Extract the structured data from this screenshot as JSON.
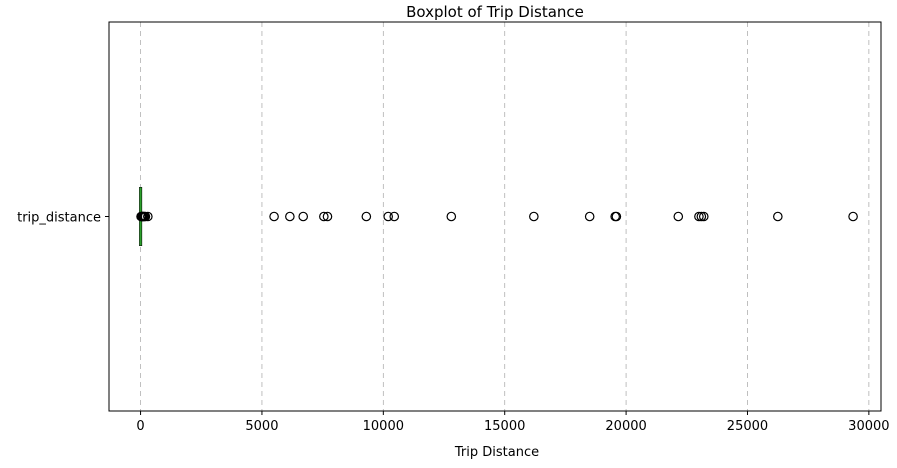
{
  "chart_data": {
    "type": "boxplot",
    "orientation": "horizontal",
    "title": "Boxplot of Trip Distance",
    "xlabel": "Trip Distance",
    "ylabel": "",
    "categories": [
      "trip_distance"
    ],
    "xlim": [
      -1300,
      30500
    ],
    "xticks": [
      0,
      5000,
      10000,
      15000,
      20000,
      25000,
      30000
    ],
    "grid": "x-dashed",
    "box": {
      "whisker_low": 0,
      "q1": 1,
      "median": 2,
      "q3": 3,
      "whisker_high": 7,
      "median_color": "#2ca02c"
    },
    "outliers": [
      20,
      40,
      60,
      80,
      100,
      130,
      160,
      200,
      300,
      5500,
      6150,
      6700,
      7550,
      7700,
      9300,
      10200,
      10450,
      12800,
      16200,
      18500,
      19550,
      19600,
      22150,
      23000,
      23100,
      23200,
      26250,
      29350
    ]
  }
}
